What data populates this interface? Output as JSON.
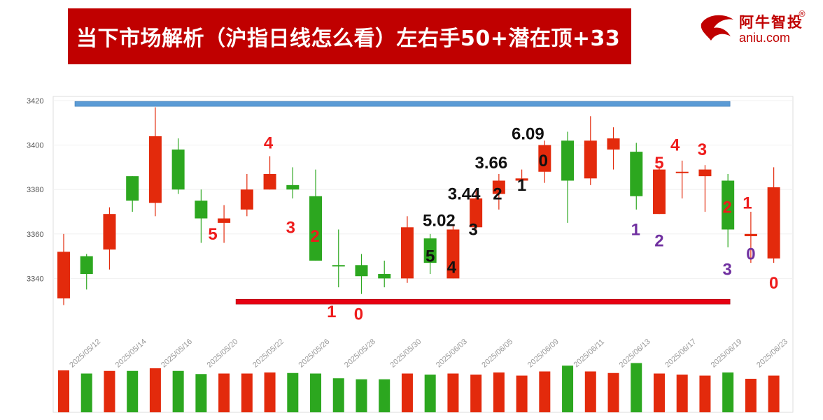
{
  "header": {
    "title": "当下市场解析（沪指日线怎么看）左右手50+潜在顶+33",
    "logo_cn": "阿牛智投",
    "logo_en": "aniu.com",
    "logo_reg": "®"
  },
  "colors": {
    "up": "#e32a0c",
    "down": "#2ca71f",
    "title_bg": "#c00000",
    "top_line": "#5b9bd5",
    "bottom_line": "#e60012",
    "anno_red": "#ee1c1c",
    "anno_black": "#111111",
    "anno_purple": "#7030a0"
  },
  "chart_data": {
    "type": "candlestick",
    "ylim": [
      3320,
      3420
    ],
    "yticks": [
      3340,
      3360,
      3380,
      3400,
      3420
    ],
    "xtick_labels": [
      "2025/05/12",
      "2025/05/14",
      "2025/05/16",
      "2025/05/20",
      "2025/05/22",
      "2025/05/26",
      "2025/05/28",
      "2025/05/30",
      "2025/06/03",
      "2025/06/05",
      "2025/06/09",
      "2025/06/11",
      "2025/06/13",
      "2025/06/17",
      "2025/06/19",
      "2025/06/23"
    ],
    "candles": [
      {
        "o": 3331,
        "c": 3352,
        "h": 3360,
        "l": 3328,
        "v": 0.8
      },
      {
        "o": 3350,
        "c": 3342,
        "h": 3351,
        "l": 3335,
        "v": 0.74
      },
      {
        "o": 3353,
        "c": 3369,
        "h": 3372,
        "l": 3344,
        "v": 0.79
      },
      {
        "o": 3386,
        "c": 3375,
        "h": 3386,
        "l": 3370,
        "v": 0.79
      },
      {
        "o": 3374,
        "c": 3404,
        "h": 3417,
        "l": 3368,
        "v": 0.84
      },
      {
        "o": 3398,
        "c": 3380,
        "h": 3403,
        "l": 3378,
        "v": 0.79
      },
      {
        "o": 3375,
        "c": 3367,
        "h": 3380,
        "l": 3356,
        "v": 0.73
      },
      {
        "o": 3365,
        "c": 3367,
        "h": 3373,
        "l": 3356,
        "v": 0.74
      },
      {
        "o": 3371,
        "c": 3380,
        "h": 3387,
        "l": 3368,
        "v": 0.74
      },
      {
        "o": 3380,
        "c": 3387,
        "h": 3395,
        "l": 3380,
        "v": 0.76
      },
      {
        "o": 3382,
        "c": 3380,
        "h": 3390,
        "l": 3376,
        "v": 0.75
      },
      {
        "o": 3377,
        "c": 3348,
        "h": 3389,
        "l": 3348,
        "v": 0.74
      },
      {
        "o": 3346,
        "c": 3346,
        "h": 3362,
        "l": 3336,
        "v": 0.65
      },
      {
        "o": 3346,
        "c": 3341,
        "h": 3351,
        "l": 3333,
        "v": 0.63
      },
      {
        "o": 3342,
        "c": 3340,
        "h": 3348,
        "l": 3336,
        "v": 0.63
      },
      {
        "o": 3340,
        "c": 3363,
        "h": 3368,
        "l": 3338,
        "v": 0.74
      },
      {
        "o": 3358,
        "c": 3347,
        "h": 3360,
        "l": 3342,
        "v": 0.72
      },
      {
        "o": 3340,
        "c": 3362,
        "h": 3364,
        "l": 3340,
        "v": 0.74
      },
      {
        "o": 3363,
        "c": 3376,
        "h": 3380,
        "l": 3360,
        "v": 0.72
      },
      {
        "o": 3378,
        "c": 3384,
        "h": 3387,
        "l": 3371,
        "v": 0.76
      },
      {
        "o": 3384,
        "c": 3385,
        "h": 3389,
        "l": 3380,
        "v": 0.7
      },
      {
        "o": 3388,
        "c": 3400,
        "h": 3402,
        "l": 3383,
        "v": 0.78
      },
      {
        "o": 3402,
        "c": 3384,
        "h": 3406,
        "l": 3365,
        "v": 0.89
      },
      {
        "o": 3385,
        "c": 3402,
        "h": 3413,
        "l": 3382,
        "v": 0.78
      },
      {
        "o": 3398,
        "c": 3403,
        "h": 3408,
        "l": 3389,
        "v": 0.75
      },
      {
        "o": 3397,
        "c": 3377,
        "h": 3401,
        "l": 3371,
        "v": 0.94
      },
      {
        "o": 3369,
        "c": 3389,
        "h": 3390,
        "l": 3369,
        "v": 0.74
      },
      {
        "o": 3388,
        "c": 3388,
        "h": 3393,
        "l": 3376,
        "v": 0.72
      },
      {
        "o": 3386,
        "c": 3389,
        "h": 3391,
        "l": 3370,
        "v": 0.7
      },
      {
        "o": 3384,
        "c": 3362,
        "h": 3387,
        "l": 3354,
        "v": 0.76
      },
      {
        "o": 3359,
        "c": 3360,
        "h": 3370,
        "l": 3347,
        "v": 0.64
      },
      {
        "o": 3349,
        "c": 3381,
        "h": 3390,
        "l": 3347,
        "v": 0.7
      }
    ],
    "annotations": [
      {
        "text": "5",
        "i": 7,
        "y": 3360,
        "dx": -16,
        "color": "red"
      },
      {
        "text": "4",
        "i": 9,
        "y": 3401,
        "dx": -2,
        "color": "red"
      },
      {
        "text": "3",
        "i": 10,
        "y": 3363,
        "dx": -3,
        "color": "red"
      },
      {
        "text": "2",
        "i": 11,
        "y": 3359,
        "dx": -1,
        "color": "red"
      },
      {
        "text": "1",
        "i": 12,
        "y": 3325,
        "dx": -10,
        "color": "red"
      },
      {
        "text": "0",
        "i": 13,
        "y": 3324,
        "dx": -4,
        "color": "red"
      },
      {
        "text": "5",
        "i": 16,
        "y": 3350,
        "dx": 0,
        "color": "black"
      },
      {
        "text": "5.02",
        "i": 17,
        "y": 3366,
        "dx": -20,
        "color": "black"
      },
      {
        "text": "4",
        "i": 17,
        "y": 3345,
        "dx": -2,
        "color": "black"
      },
      {
        "text": "3.44",
        "i": 18,
        "y": 3378,
        "dx": -17,
        "color": "black"
      },
      {
        "text": "3",
        "i": 18,
        "y": 3362,
        "dx": -4,
        "color": "black"
      },
      {
        "text": "3.66",
        "i": 19,
        "y": 3392,
        "dx": -11,
        "color": "black"
      },
      {
        "text": "2",
        "i": 19,
        "y": 3378,
        "dx": -2,
        "color": "black"
      },
      {
        "text": "1",
        "i": 20,
        "y": 3382,
        "dx": 0,
        "color": "black"
      },
      {
        "text": "6.09",
        "i": 21,
        "y": 3405,
        "dx": -24,
        "color": "black"
      },
      {
        "text": "0",
        "i": 21,
        "y": 3393,
        "dx": -2,
        "color": "black"
      },
      {
        "text": "1",
        "i": 25,
        "y": 3362,
        "dx": -1,
        "color": "purple"
      },
      {
        "text": "5",
        "i": 26,
        "y": 3392,
        "dx": 0,
        "color": "red"
      },
      {
        "text": "2",
        "i": 26,
        "y": 3357,
        "dx": 0,
        "color": "purple"
      },
      {
        "text": "4",
        "i": 27,
        "y": 3400,
        "dx": -10,
        "color": "red"
      },
      {
        "text": "3",
        "i": 28,
        "y": 3398,
        "dx": -4,
        "color": "red"
      },
      {
        "text": "2",
        "i": 29,
        "y": 3372,
        "dx": -1,
        "color": "red"
      },
      {
        "text": "1",
        "i": 30,
        "y": 3374,
        "dx": -5,
        "color": "red"
      },
      {
        "text": "3",
        "i": 29,
        "y": 3344,
        "dx": -1,
        "color": "purple"
      },
      {
        "text": "0",
        "i": 30,
        "y": 3351,
        "dx": 0,
        "color": "purple"
      },
      {
        "text": "0",
        "i": 31,
        "y": 3338,
        "dx": 0,
        "color": "red"
      }
    ],
    "top_line": {
      "y": 3419,
      "from_index": 0,
      "to_index": 29
    },
    "bottom_line": {
      "y": 3330,
      "from_index": 7,
      "to_index": 29
    }
  }
}
